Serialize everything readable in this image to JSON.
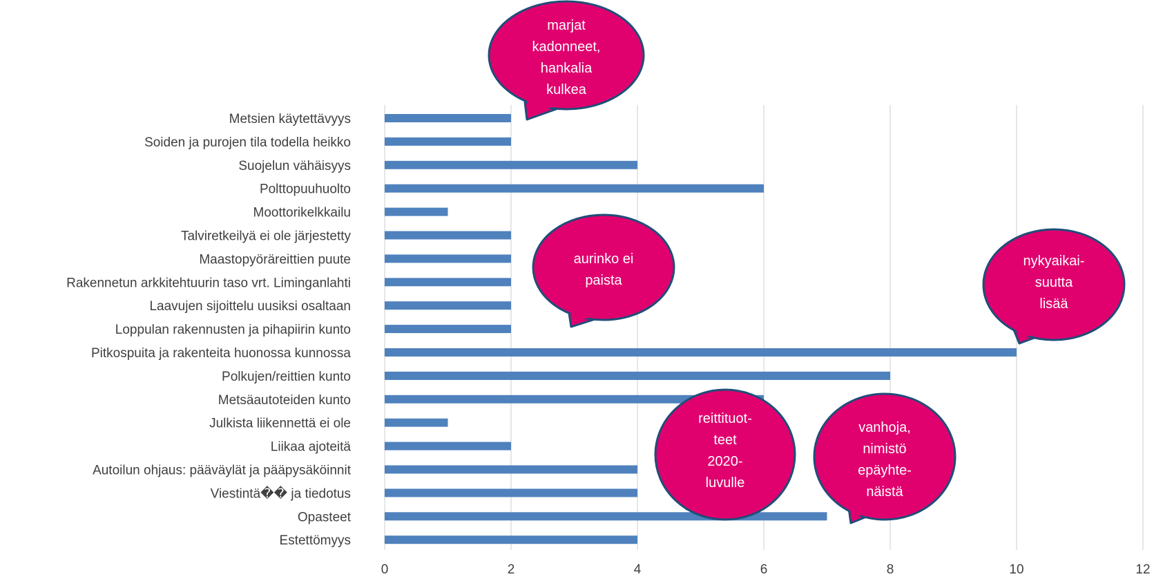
{
  "chart_data": {
    "type": "bar",
    "orientation": "horizontal",
    "categories": [
      "Metsien käytettävyys",
      "Soiden ja purojen tila todella heikko",
      "Suojelun vähäisyys",
      "Polttopuuhuolto",
      "Moottorikelkkailu",
      "Talviretkeilyä ei ole järjestetty",
      "Maastopyöräreittien puute",
      "Rakennetun arkkitehtuurin taso vrt. Liminganlahti",
      "Laavujen sijoittelu uusiksi osaltaan",
      "Loppulan rakennusten ja pihapiirin kunto",
      "Pitkospuita ja rakenteita huonossa kunnossa",
      "Polkujen/reittien kunto",
      "Metsäautoteiden kunto",
      "Julkista liikennettä ei ole",
      "Liikaa ajoteitä",
      "Autoilun ohjaus: pääväylät ja pääpysäköinnit",
      "Viestintä�� ja tiedotus",
      "Opasteet",
      "Estettömyys"
    ],
    "values": [
      2,
      2,
      4,
      6,
      1,
      2,
      2,
      2,
      2,
      2,
      10,
      8,
      6,
      1,
      2,
      4,
      4,
      7,
      4
    ],
    "xlim": [
      0,
      12
    ],
    "xticks": [
      0,
      2,
      4,
      6,
      8,
      10,
      12
    ],
    "grid": "vertical",
    "bar_color": "#4f81bd",
    "grid_color": "#d9d9d9",
    "annotations": [
      {
        "lines": [
          "marjat",
          "kadonneet,",
          "hankalia",
          "kulkea"
        ]
      },
      {
        "lines": [
          "aurinko ei",
          "paista"
        ]
      },
      {
        "lines": [
          "nykyaikai-",
          "suutta",
          "lisää"
        ]
      },
      {
        "lines": [
          "reittituot-",
          "teet",
          "2020-",
          "luvulle"
        ]
      },
      {
        "lines": [
          "vanhoja,",
          "nimistö",
          "epäyhte-",
          "näistä"
        ]
      }
    ],
    "bubble_fill": "#e0006e",
    "bubble_stroke": "#1f4e79"
  }
}
